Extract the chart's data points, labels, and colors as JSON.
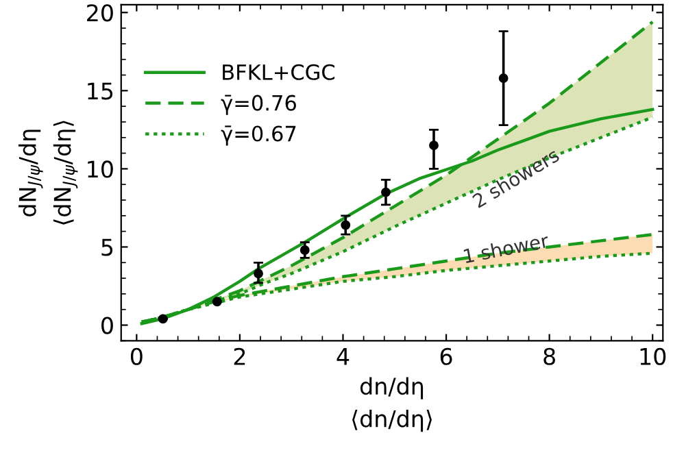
{
  "chart_data": {
    "type": "line",
    "xlabel": "dn/dη\n⟨dn/dη⟩",
    "ylabel": "dN$_{J/ψ}$/dη\n⟨dN$_{J/ψ}$/dη⟩",
    "xlim": [
      -0.3,
      10.2
    ],
    "ylim": [
      -1,
      20.5
    ],
    "xticks": [
      0,
      2,
      4,
      6,
      8,
      10
    ],
    "yticks": [
      0,
      5,
      10,
      15,
      20
    ],
    "grid": false,
    "legend": "top left",
    "annotations": [
      "2 showers",
      "1 shower"
    ],
    "series": [
      {
        "name": "BFKL+CGC",
        "line_style": "solid",
        "color": "#1a9a1a",
        "x": [
          0.1,
          0.5,
          1,
          1.5,
          2,
          2.36,
          3.26,
          4.05,
          4.83,
          5.5,
          6.5,
          7,
          8,
          9,
          10
        ],
        "values": [
          0.1,
          0.4,
          1.0,
          1.8,
          2.8,
          3.6,
          5.3,
          6.9,
          8.4,
          9.4,
          10.5,
          11.2,
          12.4,
          13.2,
          13.8
        ]
      },
      {
        "name": "γ̄=0.76",
        "line_style": "dashed",
        "color": "#1a9a1a",
        "x": [
          0.1,
          0.5,
          1,
          1.5,
          2,
          2.5,
          3,
          4,
          5,
          6,
          7,
          8,
          9,
          10
        ],
        "values": [
          0.2,
          0.5,
          1.0,
          1.6,
          2.2,
          3.0,
          3.8,
          5.6,
          7.6,
          9.6,
          11.9,
          14.2,
          16.8,
          19.4
        ],
        "lower": [
          0.2,
          0.5,
          1.0,
          1.5,
          2.0,
          2.7,
          3.3,
          4.7,
          6.3,
          7.8,
          9.3,
          10.7,
          12.0,
          13.3
        ],
        "upper": [
          0.2,
          0.5,
          1.0,
          1.6,
          2.2,
          3.0,
          3.8,
          5.6,
          7.6,
          9.6,
          11.9,
          14.2,
          16.8,
          19.4
        ]
      },
      {
        "name": "γ̄=0.67",
        "line_style": "dotted",
        "color": "#1a9a1a",
        "x": [
          0.1,
          0.5,
          1,
          1.5,
          2,
          2.5,
          3,
          4,
          5,
          6,
          7,
          8,
          9,
          10
        ],
        "values": [
          0.2,
          0.5,
          1.0,
          1.5,
          2.0,
          2.7,
          3.3,
          4.7,
          6.3,
          7.8,
          9.3,
          10.7,
          12.0,
          13.3
        ]
      },
      {
        "line_style": "dashed",
        "color": "#1a9a1a",
        "x": [
          0.1,
          0.5,
          1,
          1.5,
          2,
          3,
          4,
          5,
          6,
          7,
          8,
          9,
          10
        ],
        "values": [
          0.2,
          0.5,
          1.0,
          1.5,
          1.9,
          2.5,
          3.1,
          3.6,
          4.1,
          4.6,
          5.0,
          5.4,
          5.8
        ],
        "lower": [
          0.2,
          0.5,
          1.0,
          1.4,
          1.8,
          2.3,
          2.8,
          3.1,
          3.5,
          3.8,
          4.1,
          4.4,
          4.6
        ],
        "upper": [
          0.2,
          0.5,
          1.0,
          1.5,
          1.9,
          2.5,
          3.1,
          3.6,
          4.1,
          4.6,
          5.0,
          5.4,
          5.8
        ]
      },
      {
        "line_style": "dotted",
        "color": "#1a9a1a",
        "x": [
          0.1,
          0.5,
          1,
          1.5,
          2,
          3,
          4,
          5,
          6,
          7,
          8,
          9,
          10
        ],
        "values": [
          0.2,
          0.5,
          1.0,
          1.4,
          1.8,
          2.3,
          2.8,
          3.1,
          3.5,
          3.8,
          4.1,
          4.4,
          4.6
        ]
      },
      {
        "type": "scatter",
        "marker": "circle",
        "color": "#000000",
        "x": [
          0.51,
          1.56,
          2.36,
          3.26,
          4.05,
          4.83,
          5.76,
          7.11
        ],
        "values": [
          0.4,
          1.5,
          3.3,
          4.8,
          6.4,
          8.5,
          11.5,
          15.8
        ],
        "errors": [
          null,
          null,
          [
            2.7,
            4.0
          ],
          [
            4.3,
            5.3
          ],
          [
            5.8,
            7.0
          ],
          [
            7.7,
            9.3
          ],
          [
            10.0,
            12.5
          ],
          [
            12.8,
            18.8
          ]
        ]
      }
    ]
  }
}
